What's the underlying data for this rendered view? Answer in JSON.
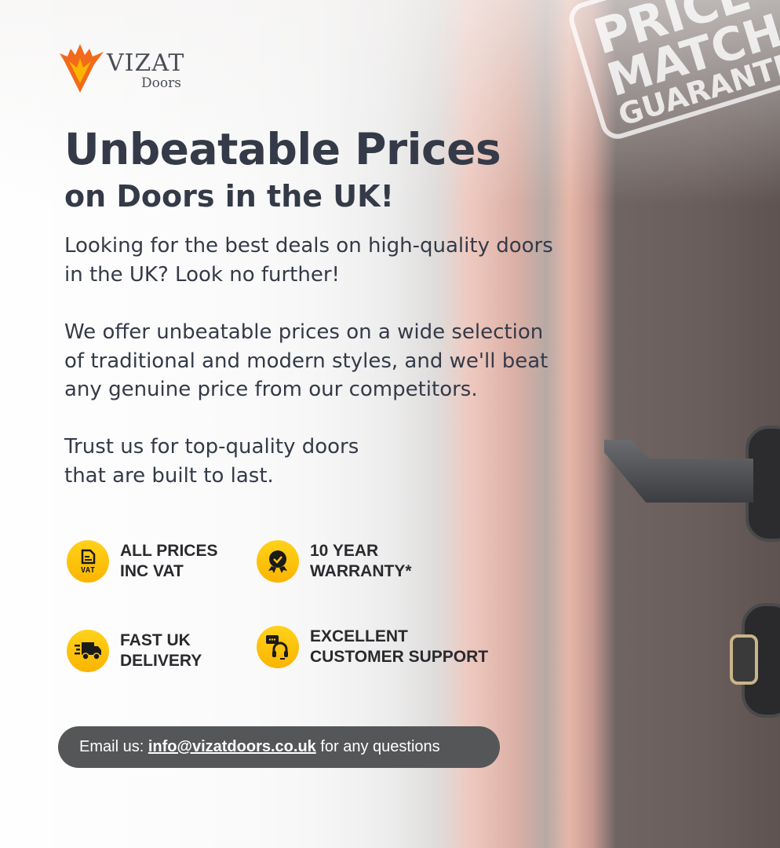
{
  "brand": {
    "name": "VIZAT",
    "sub": "Doors",
    "accent": "#f26a1b"
  },
  "stamp": {
    "lines": [
      "PRICE",
      "MATCH",
      "GUARANTEE"
    ]
  },
  "headline": "Unbeatable Prices",
  "subheadline": "on Doors in the UK!",
  "paragraphs": [
    "Looking for the best deals on high-quality doors\nin the UK? Look no further!",
    "We offer unbeatable prices on a wide selection\nof traditional and modern styles, and we'll beat\nany genuine price from our competitors.",
    "Trust us for top-quality doors\nthat are built to last."
  ],
  "features": [
    {
      "icon": "vat-document-icon",
      "label": "ALL PRICES\nINC VAT"
    },
    {
      "icon": "warranty-badge-icon",
      "label": "10 YEAR\nWARRANTY*"
    },
    {
      "icon": "delivery-truck-icon",
      "label": "FAST UK\nDELIVERY"
    },
    {
      "icon": "customer-support-icon",
      "label": "EXCELLENT\nCUSTOMER SUPPORT"
    }
  ],
  "contact": {
    "prefix": "Email us: ",
    "email": "info@vizatdoors.co.uk",
    "suffix": " for any questions"
  },
  "colors": {
    "heading": "#343a48",
    "badge": "#fbc000",
    "pill": "#555657"
  }
}
